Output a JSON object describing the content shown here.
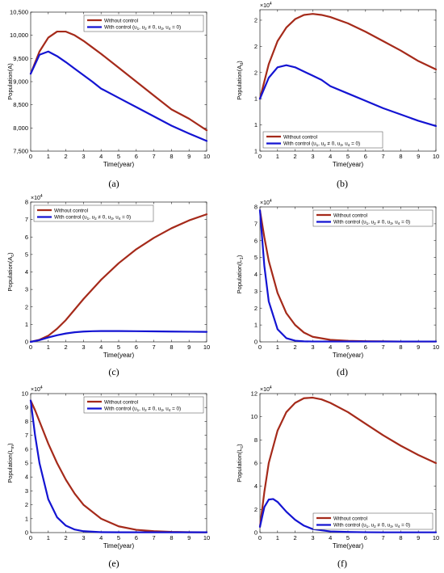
{
  "colors": {
    "without": "#a52a1a",
    "with": "#1414d2",
    "axis": "#000000"
  },
  "legend_labels": {
    "without": "Without control",
    "with": "With control (u1, u2 ≠ 0, u3, u4 = 0)"
  },
  "xlabel": "Time(year)",
  "captions": [
    "(a)",
    "(b)",
    "(c)",
    "(d)",
    "(e)",
    "(f)"
  ],
  "chart_data": [
    {
      "type": "line",
      "panel": "(a)",
      "xlabel": "Time(year)",
      "ylabel": "Population(A)",
      "xlim": [
        0,
        10
      ],
      "ylim": [
        7500,
        10500
      ],
      "xticks": [
        0,
        1,
        2,
        3,
        4,
        5,
        6,
        7,
        8,
        9,
        10
      ],
      "yticks": [
        7500,
        8000,
        8500,
        9000,
        9500,
        10000,
        10500
      ],
      "ytick_labels": [
        "7,500",
        "8,000",
        "8,500",
        "9,000",
        "9,500",
        "10,000",
        "10,500"
      ],
      "exponent": "",
      "legend": "top-right",
      "series": [
        {
          "name": "Without control",
          "x": [
            0,
            0.5,
            1,
            1.5,
            2,
            2.5,
            3,
            3.5,
            4,
            5,
            6,
            7,
            8,
            9,
            10
          ],
          "y": [
            9170,
            9650,
            9950,
            10080,
            10080,
            10000,
            9880,
            9740,
            9600,
            9300,
            9000,
            8700,
            8400,
            8200,
            7950
          ]
        },
        {
          "name": "With control (u1, u2 ≠ 0, u3, u4 = 0)",
          "x": [
            0,
            0.5,
            1,
            1.5,
            2,
            2.5,
            3,
            3.5,
            4,
            5,
            6,
            7,
            8,
            9,
            10
          ],
          "y": [
            9170,
            9580,
            9650,
            9550,
            9420,
            9280,
            9140,
            9000,
            8850,
            8650,
            8450,
            8250,
            8050,
            7880,
            7720
          ]
        }
      ]
    },
    {
      "type": "line",
      "panel": "(b)",
      "xlabel": "Time(year)",
      "ylabel": "Population(A_d)",
      "xlim": [
        0,
        10
      ],
      "ylim": [
        1,
        2.35
      ],
      "xticks": [
        0,
        1,
        2,
        3,
        4,
        5,
        6,
        7,
        8,
        9,
        10
      ],
      "yticks": [
        1,
        1.25,
        1.5,
        1.75,
        2,
        2.25
      ],
      "ytick_labels": [
        "1",
        "1",
        "1",
        "2",
        "2",
        "2"
      ],
      "exponent": "×10^4",
      "legend": "bottom-left",
      "series": [
        {
          "name": "Without control",
          "x": [
            0,
            0.5,
            1,
            1.5,
            2,
            2.5,
            3,
            3.5,
            4,
            5,
            6,
            7,
            8,
            9,
            10
          ],
          "y": [
            1.5,
            1.83,
            2.05,
            2.18,
            2.26,
            2.3,
            2.31,
            2.3,
            2.28,
            2.22,
            2.14,
            2.05,
            1.96,
            1.86,
            1.78
          ]
        },
        {
          "name": "With control (u1, u2 ≠ 0, u3, u4 = 0)",
          "x": [
            0,
            0.5,
            1,
            1.5,
            2,
            2.5,
            3,
            3.5,
            4,
            5,
            6,
            7,
            8,
            9,
            10
          ],
          "y": [
            1.5,
            1.7,
            1.8,
            1.82,
            1.8,
            1.76,
            1.72,
            1.68,
            1.62,
            1.55,
            1.48,
            1.41,
            1.35,
            1.29,
            1.24
          ]
        }
      ]
    },
    {
      "type": "line",
      "panel": "(c)",
      "xlabel": "Time(year)",
      "ylabel": "Population(A_c)",
      "xlim": [
        0,
        10
      ],
      "ylim": [
        0,
        8
      ],
      "xticks": [
        0,
        1,
        2,
        3,
        4,
        5,
        6,
        7,
        8,
        9,
        10
      ],
      "yticks": [
        0,
        1,
        2,
        3,
        4,
        5,
        6,
        7,
        8
      ],
      "ytick_labels": [
        "0",
        "1",
        "2",
        "3",
        "4",
        "5",
        "6",
        "7",
        "8"
      ],
      "exponent": "×10^4",
      "legend": "top-left",
      "series": [
        {
          "name": "Without control",
          "x": [
            0,
            0.5,
            1,
            1.5,
            2,
            2.5,
            3,
            3.5,
            4,
            5,
            6,
            7,
            8,
            9,
            10
          ],
          "y": [
            0,
            0.12,
            0.35,
            0.75,
            1.25,
            1.85,
            2.45,
            3.0,
            3.55,
            4.5,
            5.3,
            5.95,
            6.5,
            6.95,
            7.3
          ]
        },
        {
          "name": "With control (u1, u2 ≠ 0, u3, u4 = 0)",
          "x": [
            0,
            0.5,
            1,
            1.5,
            2,
            2.5,
            3,
            3.5,
            4,
            5,
            6,
            7,
            8,
            9,
            10
          ],
          "y": [
            0,
            0.1,
            0.25,
            0.38,
            0.48,
            0.55,
            0.59,
            0.61,
            0.62,
            0.62,
            0.61,
            0.6,
            0.59,
            0.58,
            0.57
          ]
        }
      ]
    },
    {
      "type": "line",
      "panel": "(d)",
      "xlabel": "Time(year)",
      "ylabel": "Population(L_1)",
      "xlim": [
        0,
        10
      ],
      "ylim": [
        0,
        8
      ],
      "xticks": [
        0,
        1,
        2,
        3,
        4,
        5,
        6,
        7,
        8,
        9,
        10
      ],
      "yticks": [
        0,
        1,
        2,
        3,
        4,
        5,
        6,
        7,
        8
      ],
      "ytick_labels": [
        "0",
        "1",
        "2",
        "3",
        "4",
        "5",
        "6",
        "7",
        "8"
      ],
      "exponent": "×10^4",
      "legend": "top-right",
      "series": [
        {
          "name": "Without control",
          "x": [
            0,
            0.25,
            0.5,
            1,
            1.5,
            2,
            2.5,
            3,
            4,
            5,
            6,
            7,
            8,
            9,
            10
          ],
          "y": [
            7.8,
            6.2,
            4.8,
            2.9,
            1.7,
            1.0,
            0.55,
            0.3,
            0.12,
            0.06,
            0.04,
            0.03,
            0.02,
            0.02,
            0.02
          ]
        },
        {
          "name": "With control (u1, u2 ≠ 0, u3, u4 = 0)",
          "x": [
            0,
            0.25,
            0.5,
            1,
            1.5,
            2,
            2.5,
            3,
            4,
            5,
            6,
            7,
            8,
            9,
            10
          ],
          "y": [
            7.8,
            4.5,
            2.4,
            0.75,
            0.22,
            0.07,
            0.03,
            0.02,
            0.02,
            0.02,
            0.02,
            0.02,
            0.02,
            0.02,
            0.02
          ]
        }
      ]
    },
    {
      "type": "line",
      "panel": "(e)",
      "xlabel": "Time(year)",
      "ylabel": "Population(L_m)",
      "xlim": [
        0,
        10
      ],
      "ylim": [
        0,
        10
      ],
      "xticks": [
        0,
        1,
        2,
        3,
        4,
        5,
        6,
        7,
        8,
        9,
        10
      ],
      "yticks": [
        0,
        1,
        2,
        3,
        4,
        5,
        6,
        7,
        8,
        9,
        10
      ],
      "ytick_labels": [
        "0",
        "1",
        "2",
        "3",
        "4",
        "5",
        "6",
        "7",
        "8",
        "9",
        "10"
      ],
      "exponent": "×10^4",
      "legend": "top-right",
      "series": [
        {
          "name": "Without control",
          "x": [
            0,
            0.25,
            0.5,
            1,
            1.5,
            2,
            2.5,
            3,
            4,
            5,
            6,
            7,
            8,
            9,
            10
          ],
          "y": [
            9.5,
            8.8,
            8.0,
            6.4,
            5.0,
            3.8,
            2.8,
            2.0,
            1.0,
            0.45,
            0.2,
            0.1,
            0.05,
            0.03,
            0.02
          ]
        },
        {
          "name": "With control (u1, u2 ≠ 0, u3, u4 = 0)",
          "x": [
            0,
            0.25,
            0.5,
            1,
            1.5,
            2,
            2.5,
            3,
            4,
            5,
            6,
            7,
            8,
            9,
            10
          ],
          "y": [
            9.5,
            7.0,
            5.0,
            2.4,
            1.1,
            0.5,
            0.22,
            0.1,
            0.03,
            0.02,
            0.02,
            0.02,
            0.02,
            0.02,
            0.02
          ]
        }
      ]
    },
    {
      "type": "line",
      "panel": "(f)",
      "xlabel": "Time(year)",
      "ylabel": "Population(L_c)",
      "xlim": [
        0,
        10
      ],
      "ylim": [
        0,
        12
      ],
      "xticks": [
        0,
        1,
        2,
        3,
        4,
        5,
        6,
        7,
        8,
        9,
        10
      ],
      "yticks": [
        0,
        2,
        4,
        6,
        8,
        10,
        12
      ],
      "ytick_labels": [
        "0",
        "2",
        "4",
        "6",
        "8",
        "10",
        "12"
      ],
      "exponent": "×10^4",
      "legend": "bottom-right",
      "series": [
        {
          "name": "Without control",
          "x": [
            0,
            0.25,
            0.5,
            1,
            1.5,
            2,
            2.5,
            3,
            3.5,
            4,
            5,
            6,
            7,
            8,
            9,
            10
          ],
          "y": [
            0.5,
            3.5,
            6.0,
            8.8,
            10.4,
            11.2,
            11.6,
            11.65,
            11.5,
            11.2,
            10.4,
            9.4,
            8.4,
            7.5,
            6.7,
            6.0
          ]
        },
        {
          "name": "With control (u1, u2 ≠ 0, u3, u4 = 0)",
          "x": [
            0,
            0.25,
            0.5,
            0.75,
            1,
            1.5,
            2,
            2.5,
            3,
            4,
            5,
            6,
            7,
            8,
            9,
            10
          ],
          "y": [
            0.5,
            2.2,
            2.85,
            2.9,
            2.65,
            1.8,
            1.1,
            0.6,
            0.3,
            0.1,
            0.05,
            0.03,
            0.02,
            0.02,
            0.02,
            0.02
          ]
        }
      ]
    }
  ]
}
